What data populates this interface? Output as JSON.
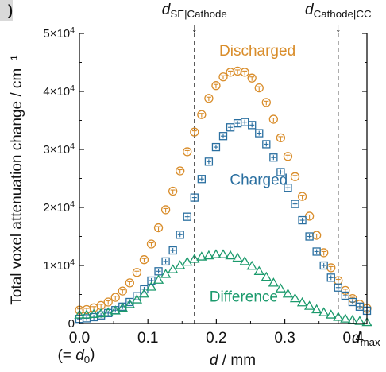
{
  "panel": {
    "tag": ")"
  },
  "chart_data": {
    "type": "scatter",
    "title": "",
    "xlabel": "d / mm",
    "ylabel": "Total voxel attenuation change / cm⁻¹",
    "xlim": [
      0,
      0.42
    ],
    "ylim": [
      0,
      50000
    ],
    "x_ticks": [
      {
        "value": 0.0,
        "label": "0.0"
      },
      {
        "value": 0.1,
        "label": "0.1"
      },
      {
        "value": 0.2,
        "label": "0.2"
      },
      {
        "value": 0.3,
        "label": "0.3"
      },
      {
        "value": 0.4,
        "label": "0.4"
      }
    ],
    "y_ticks": [
      {
        "value": 0,
        "label": "0",
        "exp": ""
      },
      {
        "value": 10000,
        "label": "1×10",
        "exp": "4"
      },
      {
        "value": 20000,
        "label": "2×10",
        "exp": "4"
      },
      {
        "value": 30000,
        "label": "3×10",
        "exp": "4"
      },
      {
        "value": 40000,
        "label": "4×10",
        "exp": "4"
      },
      {
        "value": 50000,
        "label": "5×10",
        "exp": "4"
      }
    ],
    "x_sublabel": {
      "prefix": "(= ",
      "symbol": "d",
      "sub": "0",
      "suffix": ")"
    },
    "x_end_label": {
      "symbol": "d",
      "sub": "max"
    },
    "markers": [
      {
        "x": 0.168,
        "symbol": "d",
        "sub": "SE|Cathode",
        "arrow": "↓"
      },
      {
        "x": 0.378,
        "symbol": "d",
        "sub": "Cathode|CC",
        "arrow": "↓"
      }
    ],
    "grid": false,
    "series": [
      {
        "name": "Discharged",
        "marker": "circle",
        "color": "#d98d2b",
        "label_pos": [
          0.26,
          47000
        ],
        "x": [
          0.0,
          0.0105,
          0.021,
          0.0315,
          0.042,
          0.0525,
          0.063,
          0.0735,
          0.084,
          0.0945,
          0.105,
          0.1155,
          0.126,
          0.1365,
          0.147,
          0.1575,
          0.168,
          0.1785,
          0.189,
          0.1995,
          0.21,
          0.2205,
          0.231,
          0.2415,
          0.252,
          0.2625,
          0.273,
          0.2835,
          0.294,
          0.3045,
          0.315,
          0.3255,
          0.336,
          0.3465,
          0.357,
          0.3675,
          0.378,
          0.3885,
          0.399,
          0.4095,
          0.42
        ],
        "y": [
          2300,
          2400,
          2700,
          3100,
          3700,
          4500,
          5600,
          7000,
          8800,
          11000,
          13700,
          16500,
          19600,
          22800,
          26300,
          29600,
          33000,
          36000,
          38800,
          41000,
          42500,
          43300,
          43500,
          43300,
          42300,
          40600,
          38100,
          35200,
          32000,
          28800,
          25300,
          21900,
          18500,
          15200,
          12200,
          9600,
          7400,
          5700,
          4300,
          3300,
          2600
        ]
      },
      {
        "name": "Charged",
        "marker": "square",
        "color": "#2a6fa0",
        "label_pos": [
          0.262,
          24700
        ],
        "x": [
          0.0,
          0.0105,
          0.021,
          0.0315,
          0.042,
          0.0525,
          0.063,
          0.0735,
          0.084,
          0.0945,
          0.105,
          0.1155,
          0.126,
          0.1365,
          0.147,
          0.1575,
          0.168,
          0.1785,
          0.189,
          0.1995,
          0.21,
          0.2205,
          0.231,
          0.2415,
          0.252,
          0.2625,
          0.273,
          0.2835,
          0.294,
          0.3045,
          0.315,
          0.3255,
          0.336,
          0.3465,
          0.357,
          0.3675,
          0.378,
          0.3885,
          0.399,
          0.4095,
          0.42
        ],
        "y": [
          800,
          900,
          1100,
          1400,
          1800,
          2300,
          2900,
          3700,
          4700,
          5900,
          7400,
          9000,
          10700,
          12600,
          15300,
          18400,
          21700,
          24900,
          27900,
          30400,
          32300,
          33800,
          34500,
          34700,
          34200,
          32800,
          30900,
          28600,
          26100,
          23400,
          20600,
          17800,
          15000,
          12400,
          10000,
          7900,
          6200,
          4800,
          3700,
          2900,
          2200
        ]
      },
      {
        "name": "Difference",
        "marker": "triangle",
        "color": "#1b9a6c",
        "label_pos": [
          0.24,
          4600
        ],
        "x": [
          0.0,
          0.0105,
          0.021,
          0.0315,
          0.042,
          0.0525,
          0.063,
          0.0735,
          0.084,
          0.0945,
          0.105,
          0.1155,
          0.126,
          0.1365,
          0.147,
          0.1575,
          0.168,
          0.1785,
          0.189,
          0.1995,
          0.21,
          0.2205,
          0.231,
          0.2415,
          0.252,
          0.2625,
          0.273,
          0.2835,
          0.294,
          0.3045,
          0.315,
          0.3255,
          0.336,
          0.3465,
          0.357,
          0.3675,
          0.378,
          0.3885,
          0.399,
          0.4095,
          0.42
        ],
        "y": [
          1500,
          1500,
          1600,
          1700,
          1900,
          2200,
          2700,
          3300,
          4100,
          5100,
          6300,
          7500,
          8500,
          9300,
          10000,
          10600,
          11100,
          11500,
          11700,
          11900,
          11900,
          11700,
          11300,
          10700,
          9900,
          9000,
          8000,
          7000,
          6000,
          5100,
          4300,
          3600,
          3000,
          2400,
          1900,
          1500,
          1100,
          800,
          600,
          400,
          200
        ]
      }
    ]
  }
}
